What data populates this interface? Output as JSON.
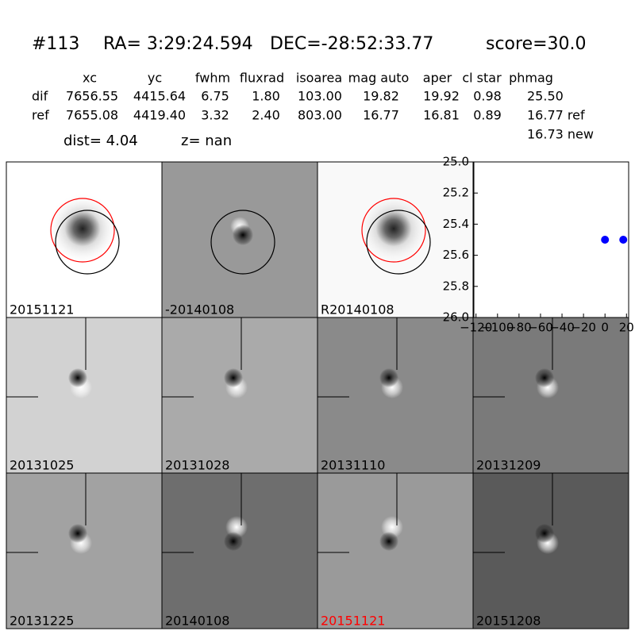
{
  "header": {
    "id": "#113",
    "ra": "RA= 3:29:24.594",
    "dec": "DEC=-28:52:33.77",
    "score": "score=30.0"
  },
  "table": {
    "columns": [
      "xc",
      "yc",
      "fwhm",
      "fluxrad",
      "isoarea",
      "mag auto",
      "aper",
      "cl star",
      "phmag"
    ],
    "rows": [
      [
        "dif",
        "7656.55",
        "4415.64",
        "6.75",
        "1.80",
        "103.00",
        "19.82",
        "19.92",
        "0.98",
        "25.50"
      ],
      [
        "ref",
        "7655.08",
        "4419.40",
        "3.32",
        "2.40",
        "803.00",
        "16.77",
        "16.81",
        "0.89",
        "16.77 ref"
      ]
    ],
    "extra": "16.73 new"
  },
  "dist": "dist=  4.04",
  "z": "z=   nan",
  "panels": [
    "20151121",
    "-20140108",
    "R20140108",
    "20131025",
    "20131028",
    "20131110",
    "20131209",
    "20131225",
    "20140108",
    "20151121",
    "20151208"
  ],
  "chart_data": {
    "type": "scatter",
    "x": [
      0,
      17
    ],
    "series": [
      {
        "color": "#0000ff",
        "values": [
          25.5,
          25.5
        ]
      }
    ],
    "xlim": [
      -122,
      22
    ],
    "ylim": [
      26.0,
      25.0
    ],
    "xticks": [
      {
        "value": -120,
        "label": "−120"
      },
      {
        "value": -100,
        "label": "−100"
      },
      {
        "value": -80,
        "label": "−80"
      },
      {
        "value": -60,
        "label": "−60"
      },
      {
        "value": -40,
        "label": "−40"
      },
      {
        "value": -20,
        "label": "−20"
      },
      0,
      20
    ],
    "yticks": [
      {
        "value": 25.0,
        "label": "25.0"
      },
      {
        "value": 25.2,
        "label": "25.2"
      },
      {
        "value": 25.4,
        "label": "25.4"
      },
      {
        "value": 25.6,
        "label": "25.6"
      },
      {
        "value": 25.8,
        "label": "25.8"
      },
      {
        "value": 26.0,
        "label": "26.0"
      }
    ]
  }
}
